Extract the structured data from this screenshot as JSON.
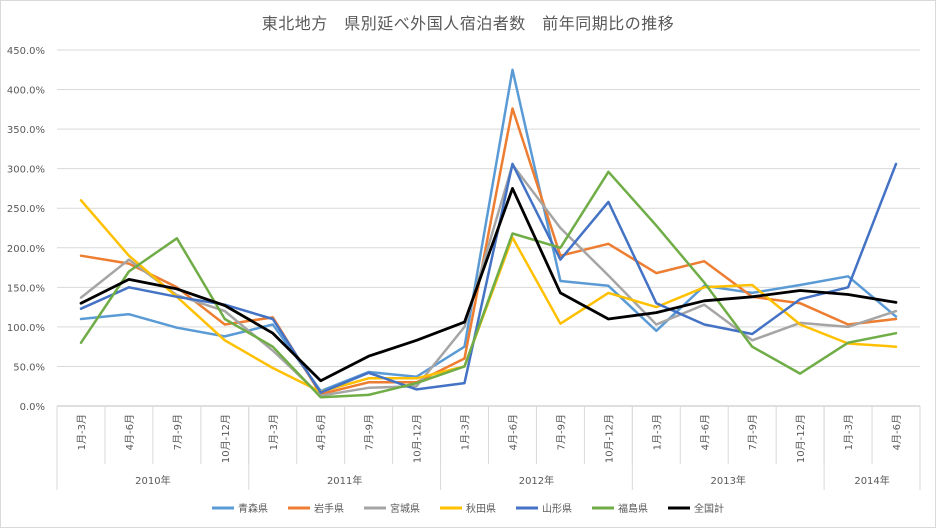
{
  "chart_data": {
    "type": "line",
    "title": "東北地方　県別延べ外国人宿泊者数　前年同期比の推移",
    "xlabel": "",
    "ylabel": "",
    "ylim": [
      0,
      450
    ],
    "yticks": [
      "0.0%",
      "50.0%",
      "100.0%",
      "150.0%",
      "200.0%",
      "250.0%",
      "300.0%",
      "350.0%",
      "400.0%",
      "450.0%"
    ],
    "grid": true,
    "legend_position": "bottom",
    "categories": [
      "1月-3月",
      "4月-6月",
      "7月-9月",
      "10月-12月",
      "1月-3月",
      "4月-6月",
      "7月-9月",
      "10月-12月",
      "1月-3月",
      "4月-6月",
      "7月-9月",
      "10月-12月",
      "1月-3月",
      "4月-6月",
      "7月-9月",
      "10月-12月",
      "1月-3月",
      "4月-6月"
    ],
    "year_groups": [
      {
        "label": "2010年",
        "count": 4
      },
      {
        "label": "2011年",
        "count": 4
      },
      {
        "label": "2012年",
        "count": 4
      },
      {
        "label": "2013年",
        "count": 4
      },
      {
        "label": "2014年",
        "count": 2
      }
    ],
    "series": [
      {
        "name": "青森県",
        "color": "#5B9BD5",
        "width": 2.5,
        "values": [
          110,
          116,
          99,
          88,
          103,
          19,
          43,
          37,
          75,
          425,
          158,
          152,
          95,
          152,
          143,
          153,
          164,
          113
        ]
      },
      {
        "name": "岩手県",
        "color": "#ED7D31",
        "width": 2.5,
        "values": [
          190,
          180,
          150,
          103,
          112,
          15,
          30,
          30,
          60,
          376,
          190,
          205,
          168,
          183,
          138,
          130,
          103,
          110
        ]
      },
      {
        "name": "宮城県",
        "color": "#A5A5A5",
        "width": 2.5,
        "values": [
          137,
          185,
          140,
          120,
          70,
          13,
          23,
          25,
          100,
          305,
          225,
          165,
          103,
          128,
          83,
          105,
          100,
          120
        ]
      },
      {
        "name": "秋田県",
        "color": "#FFC000",
        "width": 2.5,
        "values": [
          260,
          190,
          138,
          83,
          48,
          18,
          35,
          35,
          50,
          213,
          104,
          143,
          125,
          150,
          153,
          103,
          79,
          75
        ]
      },
      {
        "name": "山形県",
        "color": "#4472C4",
        "width": 2.5,
        "values": [
          123,
          150,
          138,
          128,
          110,
          17,
          42,
          21,
          29,
          306,
          185,
          258,
          130,
          103,
          91,
          135,
          150,
          306
        ]
      },
      {
        "name": "福島県",
        "color": "#70AD47",
        "width": 2.5,
        "values": [
          80,
          170,
          212,
          110,
          75,
          11,
          14,
          29,
          50,
          218,
          200,
          296,
          228,
          156,
          75,
          41,
          80,
          92
        ]
      },
      {
        "name": "全国計",
        "color": "#000000",
        "width": 2.8,
        "values": [
          130,
          160,
          148,
          127,
          92,
          32,
          63,
          83,
          106,
          275,
          143,
          110,
          118,
          133,
          138,
          146,
          141,
          131
        ]
      }
    ]
  }
}
